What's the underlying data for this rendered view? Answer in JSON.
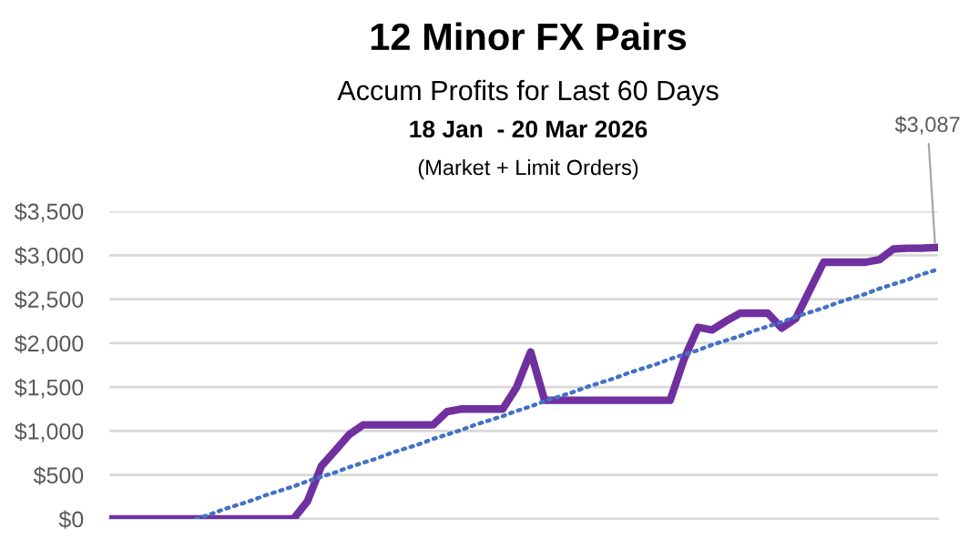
{
  "chart_data": {
    "type": "line",
    "title": "12 Minor FX Pairs",
    "subtitle": "Accum Profits for Last 60 Days",
    "annotations": [
      "18 Jan  - 20 Mar 2026",
      "(Market + Limit Orders)"
    ],
    "categories": [
      null,
      null,
      null,
      null,
      null,
      null,
      null,
      null,
      null,
      null,
      null,
      null,
      null,
      null,
      null,
      null,
      null,
      null,
      null,
      null,
      null,
      null,
      null,
      null,
      null,
      null,
      null,
      null,
      null,
      null,
      null,
      null,
      null,
      null,
      null,
      null,
      null,
      null,
      null,
      null,
      null,
      null,
      null,
      null,
      null,
      null,
      null,
      null,
      null,
      null,
      null,
      null,
      null,
      null,
      null,
      null,
      null,
      null,
      null,
      null
    ],
    "series": [
      {
        "color": "#7030a0",
        "line_style": "solid",
        "values": [
          0,
          0,
          0,
          0,
          0,
          0,
          0,
          0,
          0,
          0,
          0,
          0,
          0,
          0,
          200,
          600,
          780,
          960,
          1070,
          1070,
          1070,
          1070,
          1070,
          1070,
          1220,
          1250,
          1250,
          1250,
          1250,
          1500,
          1900,
          1350,
          1350,
          1350,
          1350,
          1350,
          1350,
          1350,
          1350,
          1350,
          1350,
          1820,
          2180,
          2150,
          2250,
          2340,
          2340,
          2340,
          2170,
          2280,
          2600,
          2920,
          2920,
          2920,
          2920,
          2950,
          3070,
          3080,
          3080,
          3087
        ],
        "value_labels": [
          null,
          null,
          null,
          null,
          null,
          null,
          null,
          null,
          null,
          null,
          null,
          null,
          null,
          null,
          null,
          null,
          null,
          null,
          null,
          null,
          null,
          null,
          null,
          null,
          null,
          null,
          null,
          null,
          null,
          null,
          null,
          null,
          null,
          null,
          null,
          null,
          null,
          null,
          null,
          null,
          null,
          null,
          null,
          null,
          null,
          null,
          null,
          null,
          null,
          null,
          null,
          null,
          null,
          null,
          null,
          null,
          null,
          null,
          null,
          "$3,087"
        ]
      },
      {
        "color": "#4472c4",
        "line_style": "dotted",
        "values": [
          null,
          null,
          null,
          null,
          null,
          null,
          0,
          50,
          110,
          160,
          210,
          270,
          320,
          370,
          430,
          480,
          530,
          590,
          640,
          690,
          750,
          800,
          850,
          910,
          960,
          1010,
          1070,
          1120,
          1170,
          1230,
          1280,
          1340,
          1390,
          1440,
          1500,
          1550,
          1600,
          1660,
          1710,
          1760,
          1820,
          1870,
          1920,
          1980,
          2030,
          2080,
          2140,
          2190,
          2240,
          2300,
          2350,
          2400,
          2460,
          2510,
          2560,
          2620,
          2670,
          2720,
          2780,
          2830
        ]
      }
    ],
    "ylim": [
      0,
      3500
    ],
    "yticks": [
      {
        "value": 0,
        "label": "$0"
      },
      {
        "value": 500,
        "label": "$500"
      },
      {
        "value": 1000,
        "label": "$1,000"
      },
      {
        "value": 1500,
        "label": "$1,500"
      },
      {
        "value": 2000,
        "label": "$2,000"
      },
      {
        "value": 2500,
        "label": "$2,500"
      },
      {
        "value": 3000,
        "label": "$3,000"
      },
      {
        "value": 3500,
        "label": "$3,500"
      }
    ],
    "grid": "y",
    "legend": false,
    "marker": "none"
  }
}
